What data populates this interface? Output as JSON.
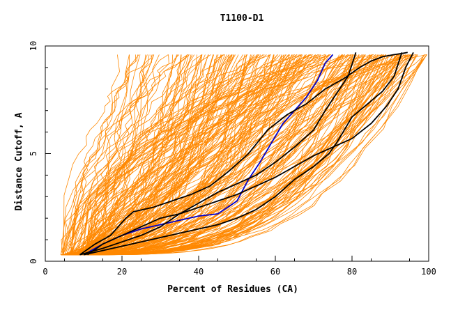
{
  "chart_data": {
    "type": "line",
    "title": "T1100-D1",
    "xlabel": "Percent of Residues (CA)",
    "ylabel": "Distance Cutoff, A",
    "xlim": [
      0,
      100
    ],
    "ylim": [
      0,
      10
    ],
    "x_ticks": [
      "0",
      "20",
      "40",
      "60",
      "80",
      "100"
    ],
    "y_ticks": [
      "0",
      "5",
      "10"
    ],
    "colors": {
      "background_models": "#ff8800",
      "highlight": "#0000cc",
      "reference": "#000000"
    },
    "background_model_count": 240,
    "series": [
      {
        "color": "#0000cc",
        "x": [
          10,
          15,
          20,
          25,
          30,
          35,
          40,
          45,
          50,
          53,
          56,
          59,
          62,
          65,
          68,
          71,
          73,
          75
        ],
        "y": [
          0.3,
          0.8,
          1.2,
          1.5,
          1.7,
          1.9,
          2.1,
          2.2,
          2.8,
          3.8,
          4.6,
          5.5,
          6.4,
          7.0,
          7.6,
          8.4,
          9.2,
          9.6
        ]
      },
      {
        "color": "#000000",
        "x": [
          9,
          13,
          17,
          19,
          21,
          23,
          28,
          33,
          38,
          43,
          48,
          53,
          58,
          63,
          68,
          73,
          78,
          82,
          85,
          88,
          91,
          93,
          94.5
        ],
        "y": [
          0.3,
          0.8,
          1.2,
          1.6,
          2.0,
          2.3,
          2.5,
          2.8,
          3.1,
          3.5,
          4.2,
          5.0,
          6.1,
          6.8,
          7.3,
          8.0,
          8.5,
          9.0,
          9.3,
          9.5,
          9.6,
          9.65,
          9.7
        ]
      },
      {
        "color": "#000000",
        "x": [
          9,
          15,
          20,
          25,
          30,
          35,
          40,
          45,
          50,
          55,
          60,
          65,
          70,
          73,
          76,
          79,
          81
        ],
        "y": [
          0.3,
          0.6,
          0.9,
          1.2,
          1.6,
          2.2,
          2.7,
          3.2,
          3.6,
          4.0,
          4.6,
          5.3,
          6.1,
          7.0,
          7.8,
          8.6,
          9.7
        ]
      },
      {
        "color": "#000000",
        "x": [
          10,
          15,
          20,
          25,
          30,
          35,
          40,
          45,
          50,
          55,
          60,
          65,
          70,
          74,
          76,
          78,
          80,
          84,
          88,
          91,
          93
        ],
        "y": [
          0.3,
          0.5,
          0.7,
          0.9,
          1.1,
          1.3,
          1.5,
          1.7,
          2.0,
          2.4,
          3.0,
          3.8,
          4.4,
          5.0,
          5.5,
          6.1,
          6.7,
          7.3,
          7.9,
          8.6,
          9.7
        ]
      },
      {
        "color": "#000000",
        "x": [
          11,
          15,
          20,
          25,
          30,
          35,
          40,
          45,
          50,
          55,
          60,
          65,
          70,
          75,
          80,
          85,
          89,
          92,
          94,
          96
        ],
        "y": [
          0.3,
          0.8,
          1.2,
          1.6,
          2.0,
          2.2,
          2.5,
          2.8,
          3.1,
          3.5,
          3.9,
          4.4,
          4.9,
          5.3,
          5.7,
          6.4,
          7.2,
          8.0,
          9.0,
          9.7
        ]
      }
    ]
  }
}
